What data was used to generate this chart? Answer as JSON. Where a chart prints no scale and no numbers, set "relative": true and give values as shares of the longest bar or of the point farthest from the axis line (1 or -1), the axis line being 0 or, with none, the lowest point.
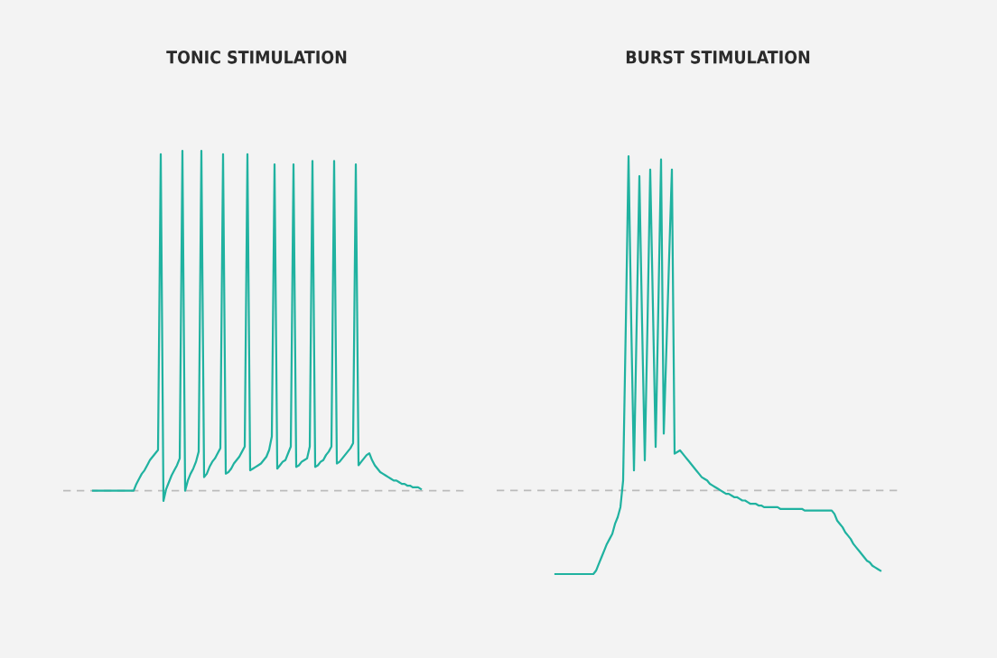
{
  "chart_data": [
    {
      "type": "line",
      "title": "TONIC STIMULATION",
      "relative": true,
      "ref_lines": [
        {
          "axis": "y",
          "value": 0,
          "color": "#bbbbbb",
          "line_style": "dashed"
        }
      ],
      "categories": [
        null,
        null,
        null,
        null,
        null,
        null,
        null,
        null,
        null,
        null,
        null,
        null,
        null,
        null,
        null,
        null,
        null,
        null,
        null,
        null,
        null,
        null,
        null,
        null,
        null,
        null,
        null,
        null,
        null,
        null,
        null,
        null,
        null,
        null,
        null,
        null,
        null,
        null,
        null,
        null,
        null,
        null,
        null,
        null,
        null,
        null,
        null,
        null,
        null,
        null,
        null,
        null,
        null,
        null,
        null,
        null,
        null,
        null,
        null,
        null,
        null,
        null,
        null,
        null,
        null,
        null,
        null,
        null,
        null,
        null,
        null,
        null,
        null,
        null,
        null,
        null,
        null,
        null,
        null,
        null,
        null,
        null,
        null,
        null,
        null,
        null,
        null,
        null,
        null,
        null,
        null,
        null,
        null,
        null,
        null,
        null,
        null,
        null,
        null,
        null,
        null,
        null,
        null,
        null,
        null,
        null,
        null,
        null,
        null,
        null,
        null,
        null,
        null,
        null,
        null,
        null,
        null,
        null,
        null,
        null,
        null,
        null
      ],
      "series": [
        {
          "color": "#20b2a0",
          "values": [
            0,
            0,
            0,
            0,
            0,
            0,
            0,
            0,
            0,
            0,
            0,
            0,
            0,
            0,
            0,
            0,
            0.02,
            0.035,
            0.05,
            0.06,
            0.075,
            0.09,
            0.1,
            0.11,
            0.12,
            0.99,
            -0.03,
            0.005,
            0.025,
            0.045,
            0.06,
            0.075,
            0.095,
            1.0,
            0,
            0.03,
            0.05,
            0.065,
            0.085,
            0.115,
            1.0,
            0.04,
            0.05,
            0.07,
            0.085,
            0.095,
            0.11,
            0.125,
            0.99,
            0.05,
            0.055,
            0.065,
            0.08,
            0.09,
            0.1,
            0.115,
            0.13,
            0.99,
            0.06,
            0.065,
            0.07,
            0.075,
            0.08,
            0.09,
            0.1,
            0.12,
            0.16,
            0.96,
            0.065,
            0.075,
            0.085,
            0.09,
            0.11,
            0.13,
            0.96,
            0.07,
            0.075,
            0.085,
            0.09,
            0.095,
            0.13,
            0.97,
            0.07,
            0.075,
            0.085,
            0.09,
            0.105,
            0.115,
            0.13,
            0.97,
            0.08,
            0.085,
            0.095,
            0.105,
            0.115,
            0.125,
            0.14,
            0.96,
            0.075,
            0.085,
            0.095,
            0.105,
            0.11,
            0.09,
            0.075,
            0.065,
            0.055,
            0.05,
            0.045,
            0.04,
            0.035,
            0.03,
            0.03,
            0.025,
            0.02,
            0.02,
            0.015,
            0.015,
            0.01,
            0.01,
            0.01,
            0.005
          ]
        }
      ]
    },
    {
      "type": "line",
      "title": "BURST STIMULATION",
      "relative": true,
      "ref_lines": [
        {
          "axis": "y",
          "value": 0,
          "color": "#bbbbbb",
          "line_style": "dashed"
        }
      ],
      "categories": [
        null,
        null,
        null,
        null,
        null,
        null,
        null,
        null,
        null,
        null,
        null,
        null,
        null,
        null,
        null,
        null,
        null,
        null,
        null,
        null,
        null,
        null,
        null,
        null,
        null,
        null,
        null,
        null,
        null,
        null,
        null,
        null,
        null,
        null,
        null,
        null,
        null,
        null,
        null,
        null,
        null,
        null,
        null,
        null,
        null,
        null,
        null,
        null,
        null,
        null,
        null,
        null,
        null,
        null,
        null,
        null,
        null,
        null,
        null,
        null,
        null,
        null,
        null,
        null,
        null,
        null,
        null,
        null,
        null,
        null,
        null,
        null,
        null,
        null,
        null,
        null,
        null,
        null,
        null,
        null,
        null,
        null,
        null,
        null,
        null,
        null,
        null,
        null,
        null,
        null,
        null,
        null,
        null,
        null,
        null,
        null,
        null,
        null,
        null,
        null,
        null,
        null,
        null,
        null,
        null,
        null,
        null,
        null,
        null,
        null,
        null,
        null,
        null,
        null,
        null,
        null,
        null,
        null,
        null,
        null,
        null
      ],
      "series": [
        {
          "color": "#20b2a0",
          "values": [
            -0.25,
            -0.25,
            -0.25,
            -0.25,
            -0.25,
            -0.25,
            -0.25,
            -0.25,
            -0.25,
            -0.25,
            -0.25,
            -0.25,
            -0.25,
            -0.25,
            -0.25,
            -0.24,
            -0.22,
            -0.2,
            -0.18,
            -0.16,
            -0.145,
            -0.13,
            -0.1,
            -0.08,
            -0.05,
            0.03,
            0.5,
            1.0,
            0.5,
            0.06,
            0.5,
            0.94,
            0.5,
            0.09,
            0.5,
            0.96,
            0.55,
            0.13,
            0.55,
            0.99,
            0.17,
            0.43,
            0.7,
            0.96,
            0.11,
            0.115,
            0.12,
            0.11,
            0.1,
            0.09,
            0.08,
            0.07,
            0.06,
            0.05,
            0.04,
            0.035,
            0.03,
            0.02,
            0.015,
            0.01,
            0.005,
            0,
            -0.005,
            -0.01,
            -0.01,
            -0.015,
            -0.02,
            -0.02,
            -0.025,
            -0.03,
            -0.03,
            -0.035,
            -0.04,
            -0.04,
            -0.04,
            -0.045,
            -0.045,
            -0.05,
            -0.05,
            -0.05,
            -0.05,
            -0.05,
            -0.05,
            -0.055,
            -0.055,
            -0.055,
            -0.055,
            -0.055,
            -0.055,
            -0.055,
            -0.055,
            -0.055,
            -0.06,
            -0.06,
            -0.06,
            -0.06,
            -0.06,
            -0.06,
            -0.06,
            -0.06,
            -0.06,
            -0.06,
            -0.06,
            -0.07,
            -0.09,
            -0.1,
            -0.11,
            -0.125,
            -0.135,
            -0.145,
            -0.16,
            -0.17,
            -0.18,
            -0.19,
            -0.2,
            -0.21,
            -0.215,
            -0.225,
            -0.23,
            -0.235,
            -0.24
          ]
        }
      ]
    }
  ]
}
